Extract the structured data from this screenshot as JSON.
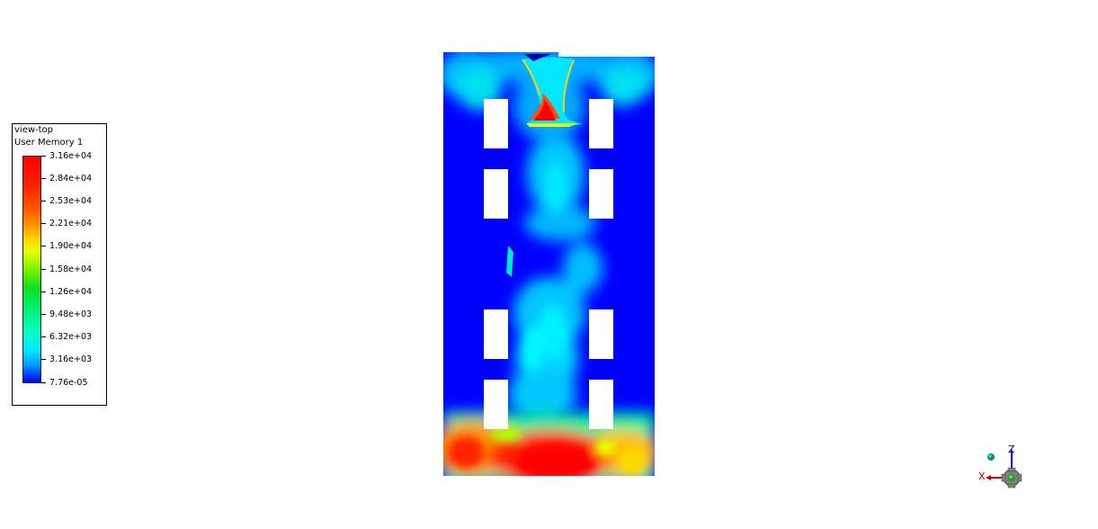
{
  "legend": {
    "title": "view-top",
    "subtitle": "User Memory 1",
    "ticks": [
      "3.16e+04",
      "2.84e+04",
      "2.53e+04",
      "2.21e+04",
      "1.90e+04",
      "1.58e+04",
      "1.26e+04",
      "9.48e+03",
      "6.32e+03",
      "3.16e+03",
      "7.76e-05"
    ],
    "colormap": [
      "#0000ff",
      "#00e8ff",
      "#00f07a",
      "#e8ff00",
      "#ff9000",
      "#ff0000"
    ]
  },
  "triad": {
    "z_label": "Z",
    "x_label": "X",
    "colors": {
      "z": "#0000c0",
      "x": "#c00000",
      "center": "#20a020"
    }
  }
}
